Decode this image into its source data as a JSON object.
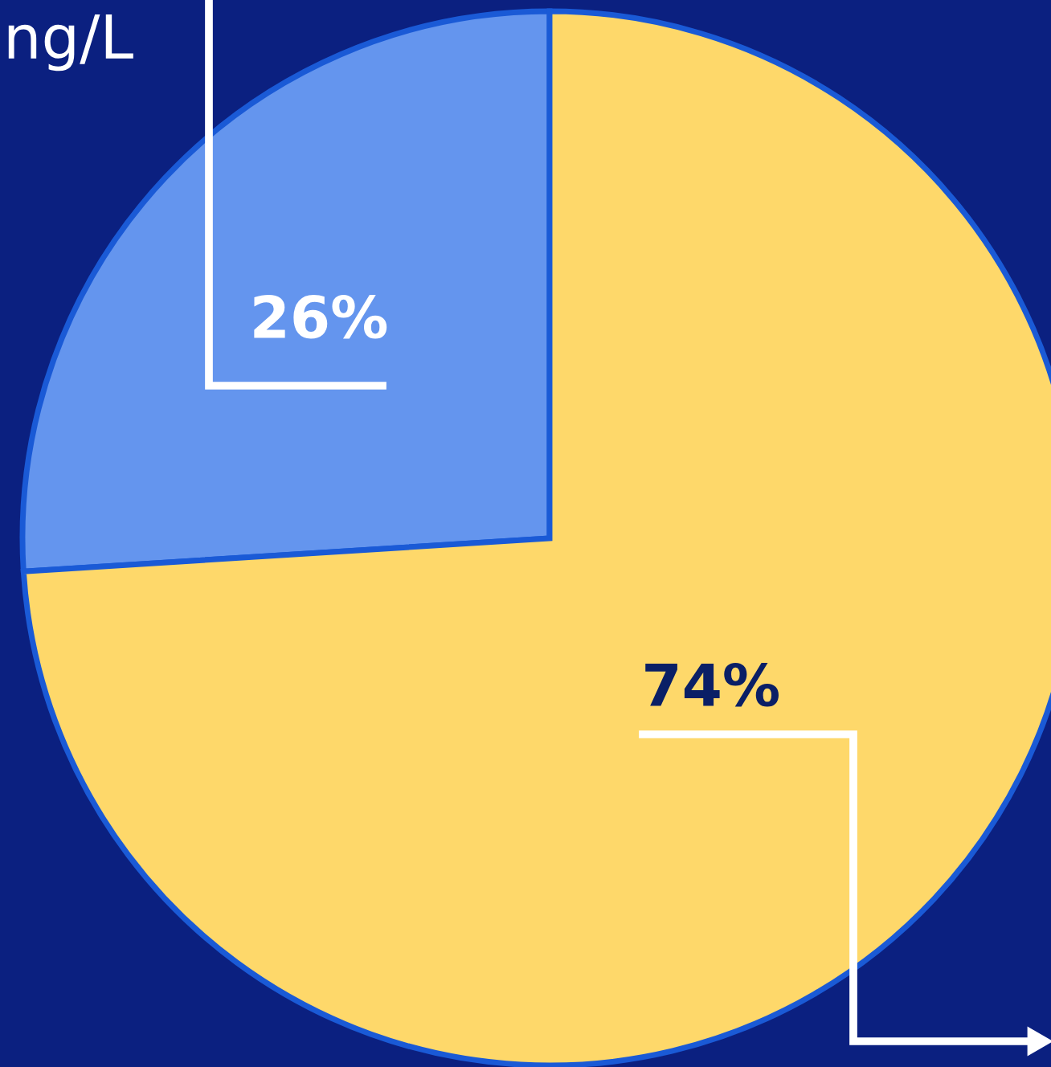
{
  "chart_data": {
    "type": "pie",
    "categories": [
      null,
      null
    ],
    "values": [
      26,
      74
    ],
    "colors": [
      "#6495ee",
      "#fed86a"
    ],
    "value_labels": [
      "26%",
      "74%"
    ],
    "annotations": [
      "ng/L"
    ]
  }
}
